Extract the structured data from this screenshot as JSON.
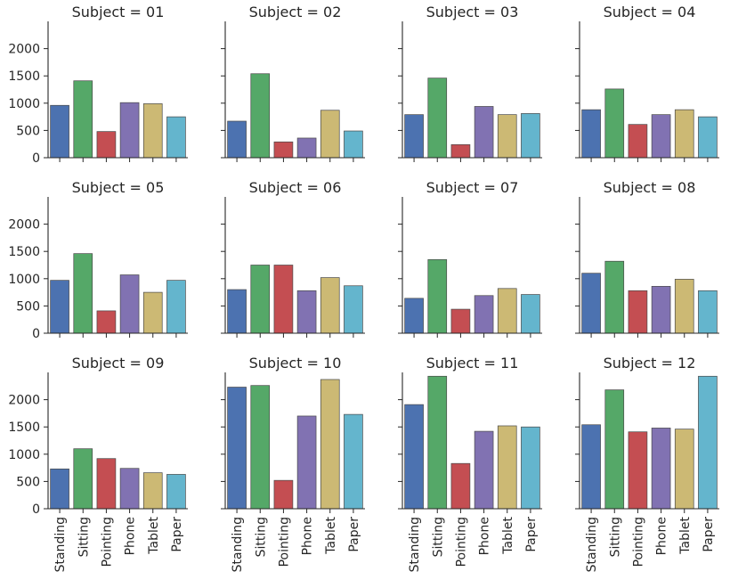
{
  "chart_data": {
    "type": "bar",
    "layout": "facet-grid",
    "categories": [
      "Standing",
      "Sitting",
      "Pointing",
      "Phone",
      "Tablet",
      "Paper"
    ],
    "colors": [
      "#4C72B0",
      "#55A868",
      "#C44E52",
      "#8172B2",
      "#CCB974",
      "#64B5CD"
    ],
    "ylim": [
      0,
      2500
    ],
    "yticks": [
      0,
      500,
      1000,
      1500,
      2000
    ],
    "grid": false,
    "panels": [
      {
        "title": "Subject = 01",
        "values": [
          960,
          1410,
          480,
          1010,
          990,
          750
        ]
      },
      {
        "title": "Subject = 02",
        "values": [
          670,
          1540,
          290,
          360,
          870,
          490
        ]
      },
      {
        "title": "Subject = 03",
        "values": [
          790,
          1460,
          240,
          940,
          790,
          810
        ]
      },
      {
        "title": "Subject = 04",
        "values": [
          880,
          1260,
          610,
          790,
          880,
          750
        ]
      },
      {
        "title": "Subject = 05",
        "values": [
          970,
          1460,
          410,
          1070,
          750,
          970
        ]
      },
      {
        "title": "Subject = 06",
        "values": [
          800,
          1250,
          1250,
          780,
          1020,
          870
        ]
      },
      {
        "title": "Subject = 07",
        "values": [
          640,
          1350,
          440,
          690,
          820,
          710
        ]
      },
      {
        "title": "Subject = 08",
        "values": [
          1100,
          1320,
          780,
          860,
          990,
          780
        ]
      },
      {
        "title": "Subject = 09",
        "values": [
          730,
          1100,
          920,
          740,
          660,
          630
        ]
      },
      {
        "title": "Subject = 10",
        "values": [
          2230,
          2260,
          520,
          1700,
          2370,
          1730
        ]
      },
      {
        "title": "Subject = 11",
        "values": [
          1910,
          2430,
          830,
          1420,
          1520,
          1500
        ]
      },
      {
        "title": "Subject = 12",
        "values": [
          1540,
          2180,
          1410,
          1480,
          1460,
          2430
        ]
      }
    ]
  }
}
